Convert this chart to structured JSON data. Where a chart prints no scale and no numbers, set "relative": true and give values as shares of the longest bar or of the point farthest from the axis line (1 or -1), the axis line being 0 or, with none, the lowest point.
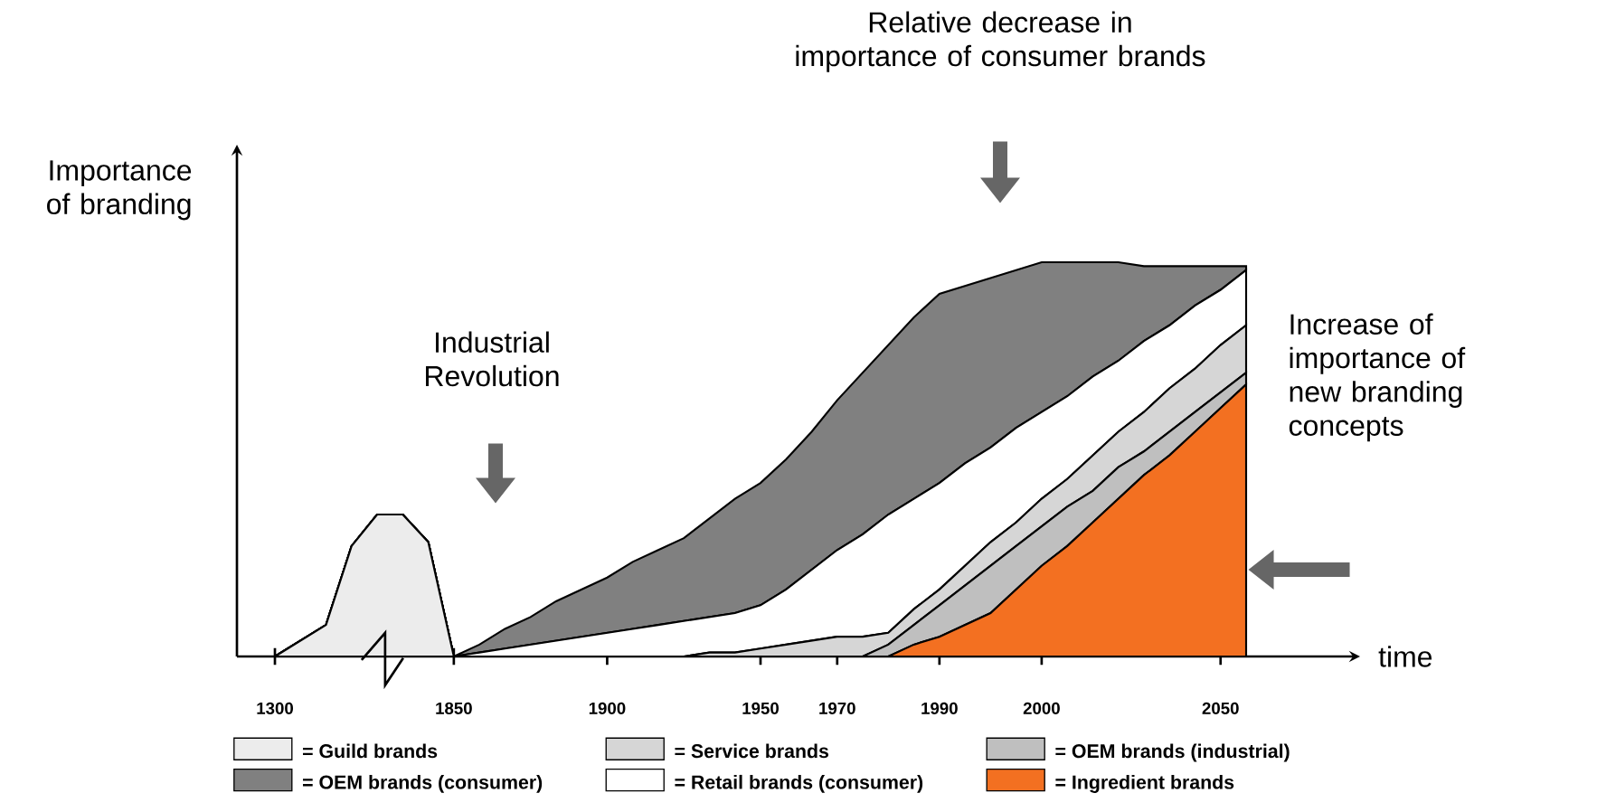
{
  "chart_data": {
    "type": "area",
    "stacked": true,
    "relative": true,
    "legend": "bottom",
    "xlabel": "time",
    "ylabel": "Importance of branding",
    "annotations": [
      "Relative decrease in importance of consumer brands",
      "Industrial Revolution",
      "Increase of importance of new branding concepts"
    ],
    "categories": [
      "1300",
      null,
      null,
      null,
      null,
      null,
      null,
      "1850",
      null,
      null,
      null,
      null,
      null,
      "1900",
      null,
      null,
      null,
      null,
      null,
      "1950",
      null,
      null,
      "1970",
      null,
      null,
      null,
      "1990",
      null,
      null,
      null,
      "2000",
      null,
      null,
      null,
      null,
      null,
      null,
      "2050",
      null
    ],
    "series": [
      {
        "name": "= Guild brands",
        "color": "#ececec",
        "values": [
          0,
          0.04,
          0.08,
          0.28,
          0.36,
          0.36,
          0.29,
          0,
          0,
          0,
          0,
          0,
          0,
          0,
          0,
          0,
          0,
          0,
          0,
          0,
          0,
          0,
          0,
          0,
          0,
          0,
          0,
          0,
          0,
          0,
          0,
          0,
          0,
          0,
          0,
          0,
          0,
          0,
          0
        ]
      },
      {
        "name": "= Ingredient brands",
        "color": "#f37021",
        "values": [
          0,
          0,
          0,
          0,
          0,
          0,
          0,
          0,
          0,
          0,
          0,
          0,
          0,
          0,
          0,
          0,
          0,
          0,
          0,
          0,
          0,
          0,
          0,
          0,
          0,
          0.03,
          0.05,
          0.08,
          0.11,
          0.17,
          0.23,
          0.28,
          0.34,
          0.4,
          0.46,
          0.51,
          0.57,
          0.63,
          0.69
        ]
      },
      {
        "name": "= OEM brands (industrial)",
        "color": "#bfbfbf",
        "values": [
          0,
          0,
          0,
          0,
          0,
          0,
          0,
          0,
          0,
          0,
          0,
          0,
          0,
          0,
          0,
          0,
          0,
          0,
          0,
          0,
          0,
          0,
          0,
          0,
          0.03,
          0.05,
          0.08,
          0.1,
          0.12,
          0.11,
          0.1,
          0.1,
          0.08,
          0.08,
          0.06,
          0.06,
          0.05,
          0.04,
          0.03
        ]
      },
      {
        "name": "= Service brands",
        "color": "#d6d6d6",
        "values": [
          0,
          0,
          0,
          0,
          0,
          0,
          0,
          0,
          0,
          0,
          0,
          0,
          0,
          0,
          0,
          0,
          0,
          0.01,
          0.01,
          0.02,
          0.03,
          0.04,
          0.05,
          0.05,
          0.03,
          0.04,
          0.04,
          0.05,
          0.06,
          0.06,
          0.07,
          0.07,
          0.09,
          0.09,
          0.1,
          0.11,
          0.11,
          0.12,
          0.12
        ]
      },
      {
        "name": "= Retail brands (consumer)",
        "color": "#ffffff",
        "values": [
          0,
          0,
          0,
          0,
          0,
          0,
          0,
          0,
          0.01,
          0.02,
          0.03,
          0.04,
          0.05,
          0.06,
          0.07,
          0.08,
          0.09,
          0.09,
          0.1,
          0.11,
          0.14,
          0.18,
          0.22,
          0.26,
          0.3,
          0.28,
          0.27,
          0.26,
          0.24,
          0.24,
          0.22,
          0.21,
          0.2,
          0.18,
          0.18,
          0.16,
          0.16,
          0.14,
          0.14
        ]
      },
      {
        "name": "= OEM brands (consumer)",
        "color": "#808080",
        "values": [
          0,
          0,
          0,
          0,
          0,
          0,
          0,
          0,
          0.02,
          0.05,
          0.07,
          0.1,
          0.12,
          0.14,
          0.17,
          0.19,
          0.21,
          0.25,
          0.29,
          0.31,
          0.33,
          0.35,
          0.38,
          0.41,
          0.43,
          0.46,
          0.48,
          0.45,
          0.43,
          0.4,
          0.38,
          0.34,
          0.29,
          0.25,
          0.19,
          0.15,
          0.1,
          0.06,
          0.01
        ]
      }
    ]
  }
}
